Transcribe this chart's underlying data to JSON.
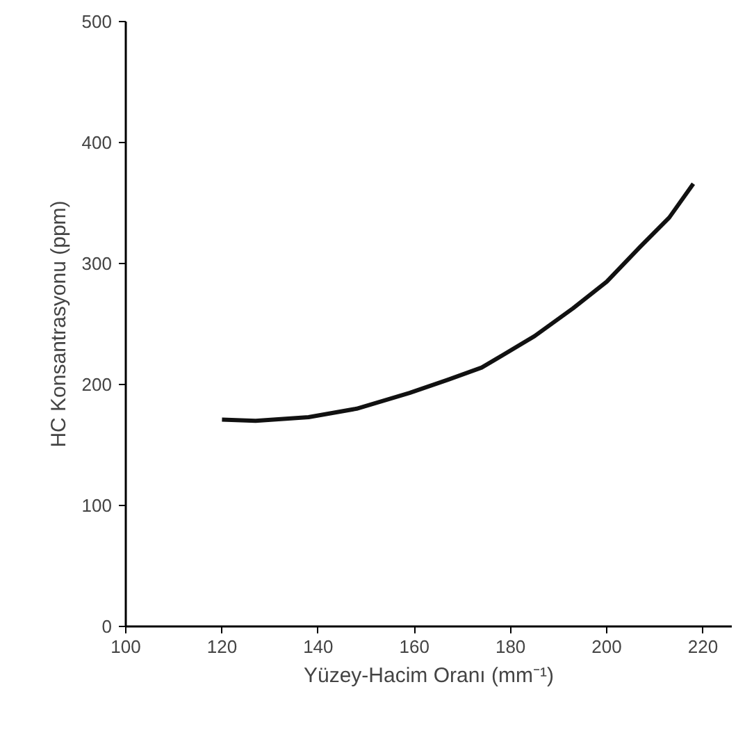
{
  "chart_data": {
    "type": "line",
    "xlabel": "Yüzey-Hacim Oranı (mm⁻¹)",
    "ylabel": "HC Konsantrasyonu (ppm)",
    "x": [
      120,
      127,
      138,
      148,
      159,
      167,
      174,
      177,
      185,
      193,
      200,
      207,
      213,
      218
    ],
    "series": [
      {
        "color": "#111111",
        "values": [
          171,
          170,
          173,
          180,
          193,
          204,
          214,
          221,
          240,
          263,
          285,
          314,
          338,
          366
        ]
      }
    ],
    "xlim": [
      100,
      226
    ],
    "ylim": [
      0,
      500
    ],
    "xticks": [
      100,
      120,
      140,
      160,
      180,
      200,
      220
    ],
    "yticks": [
      0,
      100,
      200,
      300,
      400,
      500
    ],
    "grid": false,
    "marker": "none",
    "line_style": "solid"
  }
}
